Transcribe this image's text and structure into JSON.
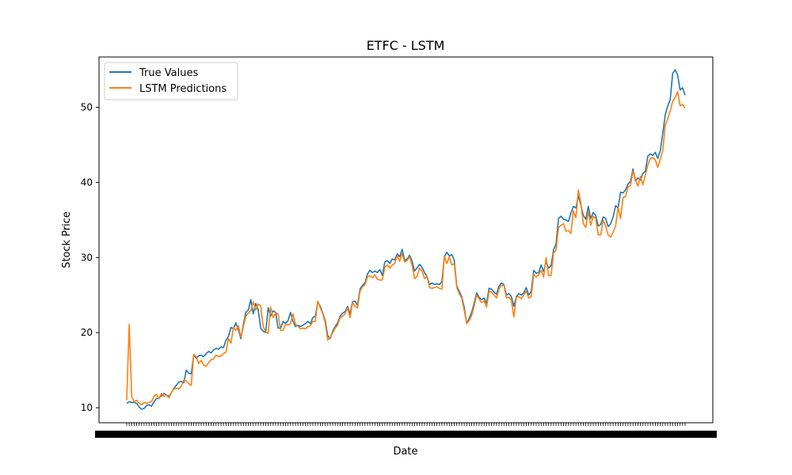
{
  "chart_data": {
    "type": "line",
    "title": "ETFC - LSTM",
    "xlabel": "Date",
    "ylabel": "Stock Price",
    "ylim": [
      8,
      56.7
    ],
    "yticks": [
      10,
      20,
      30,
      40,
      50
    ],
    "xticks": "dense date labels (overlapping, illegible)",
    "grid": false,
    "legend": "upper left",
    "series": [
      {
        "name": "True Values",
        "color": "#1f77b4",
        "values": [
          10.6,
          10.8,
          10.7,
          10.7,
          10.6,
          10.1,
          9.8,
          9.9,
          10.3,
          10.4,
          10.2,
          10.8,
          11.2,
          11.3,
          11.6,
          11.9,
          11.7,
          11.5,
          12.0,
          12.6,
          13.0,
          13.4,
          13.5,
          13.3,
          15.0,
          14.6,
          14.5,
          17.0,
          16.6,
          16.9,
          17.0,
          16.8,
          17.2,
          17.5,
          17.3,
          17.7,
          17.9,
          17.8,
          18.1,
          18.0,
          19.0,
          19.5,
          20.7,
          20.5,
          21.3,
          20.4,
          19.2,
          21.1,
          22.7,
          23.0,
          24.4,
          22.5,
          23.9,
          23.0,
          20.6,
          20.2,
          20.0,
          23.3,
          22.2,
          22.9,
          22.7,
          20.6,
          20.6,
          21.5,
          21.2,
          21.6,
          22.7,
          21.5,
          20.8,
          21.0,
          20.8,
          21.0,
          21.2,
          21.5,
          21.2,
          22.0,
          22.2,
          24.1,
          23.5,
          22.6,
          21.6,
          19.6,
          19.2,
          20.2,
          20.8,
          21.3,
          22.2,
          22.6,
          22.8,
          23.5,
          22.5,
          24.1,
          24.2,
          23.6,
          25.8,
          26.3,
          26.6,
          27.8,
          28.3,
          28.0,
          28.2,
          28.0,
          28.4,
          27.6,
          29.4,
          29.6,
          29.2,
          29.8,
          29.7,
          30.5,
          30.1,
          31.1,
          29.6,
          29.8,
          30.3,
          29.5,
          28.2,
          28.6,
          29.1,
          28.7,
          28.0,
          27.5,
          26.4,
          26.6,
          26.4,
          26.5,
          26.4,
          26.8,
          30.1,
          30.7,
          30.2,
          30.4,
          29.6,
          26.2,
          25.5,
          24.8,
          23.4,
          21.2,
          21.9,
          22.7,
          23.9,
          25.3,
          24.7,
          24.4,
          24.6,
          23.9,
          25.9,
          25.8,
          25.4,
          25.1,
          26.2,
          26.6,
          26.4,
          25.0,
          25.2,
          24.8,
          23.5,
          24.8,
          25.2,
          25.0,
          25.3,
          26.0,
          25.0,
          25.5,
          28.3,
          27.9,
          28.0,
          29.0,
          28.1,
          29.4,
          28.6,
          28.9,
          31.0,
          31.8,
          35.2,
          35.5,
          35.1,
          35.0,
          34.8,
          35.9,
          36.8,
          36.6,
          38.2,
          37.0,
          35.6,
          35.1,
          36.8,
          35.2,
          36.0,
          35.6,
          34.2,
          34.4,
          35.4,
          35.2,
          34.1,
          34.5,
          35.4,
          36.9,
          36.6,
          38.7,
          38.6,
          39.0,
          39.8,
          40.1,
          41.8,
          40.2,
          40.6,
          40.3,
          41.2,
          41.5,
          43.5,
          43.8,
          43.6,
          44.0,
          43.2,
          44.2,
          46.5,
          49.0,
          50.2,
          51.0,
          54.5,
          55.0,
          54.3,
          52.3,
          52.6,
          51.6
        ]
      },
      {
        "name": "LSTM Predictions",
        "color": "#ff7f0e",
        "values": [
          11.0,
          21.1,
          11.5,
          10.8,
          11.0,
          10.6,
          10.4,
          10.7,
          10.6,
          10.7,
          10.8,
          11.5,
          11.8,
          11.2,
          11.9,
          11.5,
          11.7,
          11.3,
          12.0,
          12.5,
          12.6,
          12.5,
          12.9,
          13.7,
          13.6,
          13.2,
          13.0,
          17.1,
          16.8,
          15.9,
          16.3,
          15.7,
          15.5,
          16.0,
          16.4,
          16.5,
          17.0,
          16.8,
          16.9,
          17.2,
          17.4,
          19.2,
          18.6,
          20.7,
          20.3,
          20.9,
          19.4,
          20.8,
          22.2,
          22.6,
          22.9,
          24.1,
          23.0,
          23.8,
          23.6,
          20.8,
          20.1,
          19.9,
          23.4,
          22.0,
          22.6,
          22.5,
          20.3,
          20.3,
          21.1,
          21.0,
          21.2,
          22.5,
          21.1,
          20.9,
          20.5,
          20.6,
          20.5,
          20.8,
          20.9,
          21.5,
          21.5,
          24.2,
          23.3,
          22.5,
          21.3,
          19.0,
          19.3,
          20.0,
          20.6,
          21.0,
          22.0,
          22.2,
          22.5,
          23.3,
          22.0,
          24.0,
          23.5,
          23.3,
          25.5,
          26.1,
          26.4,
          27.4,
          27.6,
          27.3,
          27.7,
          27.1,
          27.0,
          27.0,
          28.7,
          29.0,
          28.6,
          29.0,
          29.2,
          30.3,
          29.5,
          30.5,
          29.4,
          29.6,
          30.1,
          29.0,
          27.2,
          27.5,
          28.6,
          28.2,
          27.2,
          27.5,
          26.0,
          25.9,
          26.0,
          26.1,
          25.9,
          25.8,
          30.2,
          29.2,
          30.1,
          29.0,
          29.2,
          26.0,
          25.2,
          24.6,
          23.0,
          21.2,
          21.6,
          22.3,
          23.5,
          25.0,
          24.5,
          24.0,
          24.2,
          23.4,
          25.5,
          25.4,
          25.0,
          24.6,
          25.8,
          26.3,
          26.3,
          24.6,
          24.7,
          24.3,
          22.1,
          24.7,
          24.8,
          24.5,
          25.0,
          25.5,
          24.6,
          24.8,
          27.8,
          27.4,
          27.7,
          28.3,
          27.4,
          30.0,
          27.6,
          27.6,
          30.6,
          31.0,
          34.0,
          34.3,
          34.5,
          33.5,
          33.6,
          33.2,
          36.2,
          35.3,
          39.0,
          37.2,
          34.5,
          34.0,
          36.2,
          34.3,
          35.5,
          35.2,
          33.0,
          33.0,
          35.0,
          34.2,
          33.0,
          32.7,
          33.4,
          34.2,
          36.7,
          35.2,
          38.0,
          38.1,
          39.4,
          39.6,
          41.5,
          40.4,
          39.5,
          40.8,
          39.7,
          41.0,
          42.3,
          43.2,
          43.3,
          43.0,
          42.0,
          43.1,
          44.2,
          47.6,
          48.5,
          49.5,
          50.8,
          51.3,
          52.1,
          50.2,
          50.4,
          49.9
        ]
      }
    ]
  }
}
